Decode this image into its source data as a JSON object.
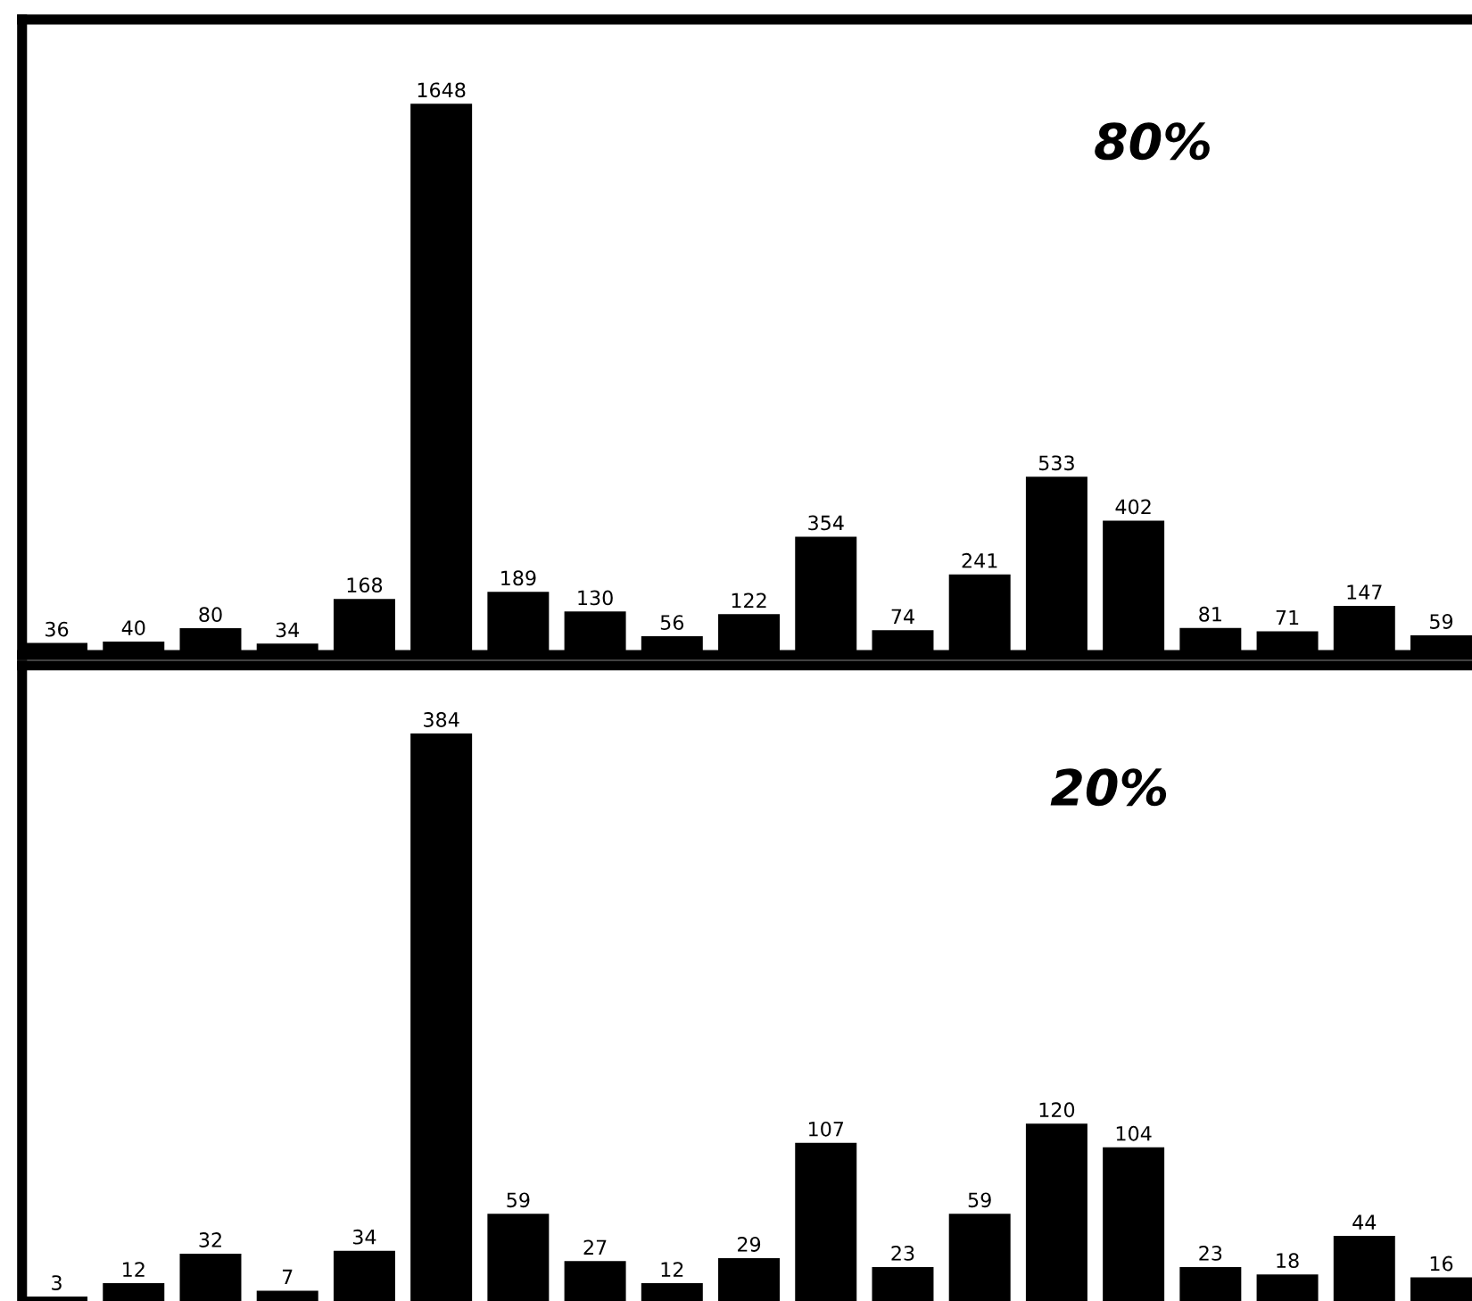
{
  "chart_data": [
    {
      "type": "bar",
      "categories": [
        null,
        null,
        null,
        null,
        null,
        null,
        null,
        null,
        null,
        null,
        null,
        null,
        null,
        null,
        null,
        null,
        null,
        null,
        null
      ],
      "values": [
        36,
        40,
        80,
        34,
        168,
        1648,
        189,
        130,
        56,
        122,
        354,
        74,
        241,
        533,
        402,
        81,
        71,
        147,
        59
      ],
      "color": "#000000",
      "ylim": [
        0,
        1900
      ],
      "data_labels": true,
      "annotations": [
        "80%"
      ],
      "tick_labels": false,
      "grid": false,
      "legend": false
    },
    {
      "type": "bar",
      "categories": [
        null,
        null,
        null,
        null,
        null,
        null,
        null,
        null,
        null,
        null,
        null,
        null,
        null,
        null,
        null,
        null,
        null,
        null,
        null
      ],
      "values": [
        3,
        12,
        32,
        7,
        34,
        384,
        59,
        27,
        12,
        29,
        107,
        23,
        59,
        120,
        104,
        23,
        18,
        44,
        16
      ],
      "color": "#000000",
      "ylim": [
        0,
        430
      ],
      "data_labels": true,
      "annotations": [
        "20%"
      ],
      "tick_labels": false,
      "grid": false,
      "legend": false
    }
  ]
}
